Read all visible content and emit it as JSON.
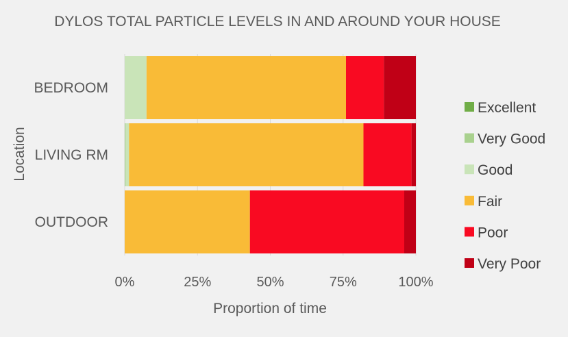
{
  "chart_data": {
    "type": "bar",
    "orientation": "horizontal",
    "stacked": true,
    "title": "DYLOS TOTAL PARTICLE LEVELS IN AND AROUND YOUR HOUSE",
    "xlabel": "Proportion of time",
    "ylabel": "Location",
    "xlim": [
      0,
      100
    ],
    "x_ticks": [
      "0%",
      "25%",
      "50%",
      "75%",
      "100%"
    ],
    "x_tick_values": [
      0,
      25,
      50,
      75,
      100
    ],
    "categories": [
      "BEDROOM",
      "LIVING RM",
      "OUTDOOR"
    ],
    "series": [
      {
        "name": "Excellent",
        "color": "#70ad47",
        "values": [
          0,
          0,
          0
        ]
      },
      {
        "name": "Very Good",
        "color": "#a9d18e",
        "values": [
          0,
          0.3,
          0
        ]
      },
      {
        "name": "Good",
        "color": "#c9e4b8",
        "values": [
          7.5,
          1.2,
          0
        ]
      },
      {
        "name": "Fair",
        "color": "#f9bb37",
        "values": [
          68.5,
          80.5,
          43
        ]
      },
      {
        "name": "Poor",
        "color": "#f90a22",
        "values": [
          13,
          16.5,
          53
        ]
      },
      {
        "name": "Very Poor",
        "color": "#c00016",
        "values": [
          11,
          1.5,
          4
        ]
      }
    ],
    "legend": "right",
    "grid": true
  }
}
